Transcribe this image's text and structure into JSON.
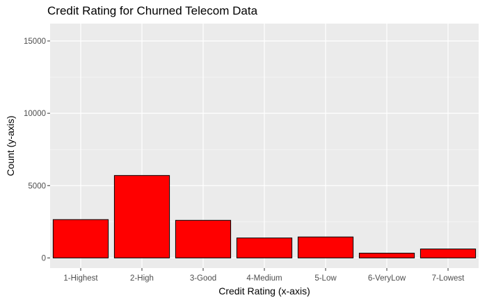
{
  "chart_data": {
    "type": "bar",
    "title": "Credit Rating for Churned Telecom Data",
    "xlabel": "Credit Rating (x-axis)",
    "ylabel": "Count (y-axis)",
    "categories": [
      "1-Highest",
      "2-High",
      "3-Good",
      "4-Medium",
      "5-Low",
      "6-VeryLow",
      "7-Lowest"
    ],
    "values": [
      2650,
      5700,
      2600,
      1380,
      1450,
      330,
      620
    ],
    "ylim": [
      -700,
      16200
    ],
    "yticks": [
      0,
      5000,
      10000,
      15000
    ],
    "ytick_labels": [
      "0",
      "5000",
      "10000",
      "15000"
    ],
    "grid": true,
    "colors": {
      "bar_fill": "#ff0000",
      "bar_stroke": "#000000",
      "panel_background": "#ebebeb",
      "grid_major": "#ffffff"
    }
  }
}
